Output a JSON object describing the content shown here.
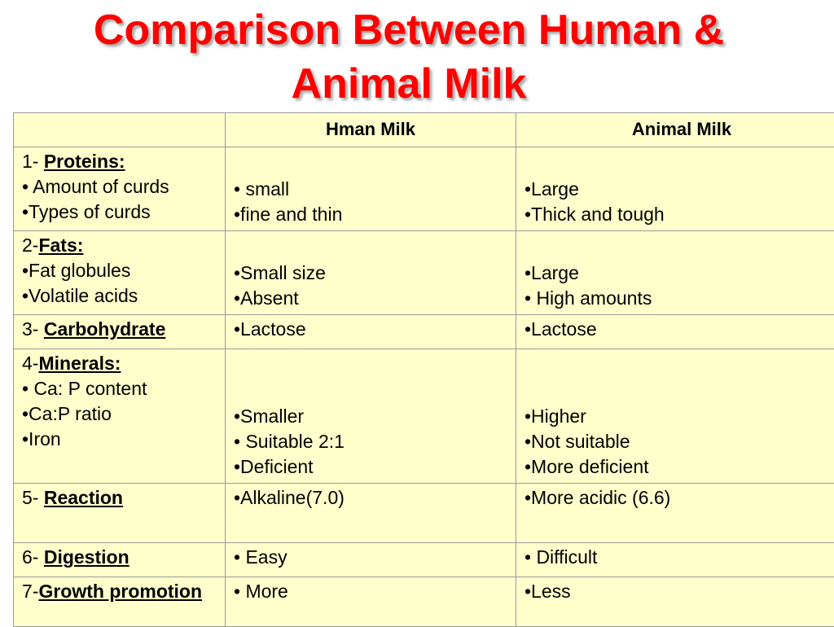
{
  "title": {
    "line1": "Comparison Between Human &",
    "line2": "Animal Milk"
  },
  "table": {
    "headers": [
      "",
      "Hman Milk",
      "Animal Milk"
    ],
    "rows": [
      {
        "prefix": "1- ",
        "category": "Proteins:",
        "items": [
          "• Amount of curds",
          "•Types of curds"
        ],
        "human": [
          "• small",
          "•fine and thin"
        ],
        "animal": [
          "•Large",
          "•Thick and tough"
        ]
      },
      {
        "prefix": "2-",
        "category": "Fats:",
        "items": [
          "•Fat globules",
          "•Volatile acids"
        ],
        "human": [
          "•Small size",
          "•Absent"
        ],
        "animal": [
          "•Large",
          "• High amounts"
        ]
      },
      {
        "prefix": "3- ",
        "category": "Carbohydrate",
        "items": [],
        "human": [
          "•Lactose"
        ],
        "animal": [
          "•Lactose"
        ]
      },
      {
        "prefix": "4-",
        "category": "Minerals:",
        "items": [
          "• Ca: P content",
          "•Ca:P ratio",
          "•Iron"
        ],
        "human": [
          "•Smaller",
          "• Suitable 2:1",
          "•Deficient"
        ],
        "animal": [
          "•Higher",
          "•Not suitable",
          "•More deficient"
        ]
      },
      {
        "prefix": "5- ",
        "category": "Reaction",
        "items": [],
        "human": [
          "•Alkaline(7.0)"
        ],
        "animal": [
          "•More acidic (6.6)"
        ]
      },
      {
        "prefix": "6- ",
        "category": "Digestion",
        "items": [],
        "human": [
          "• Easy"
        ],
        "animal": [
          "• Difficult"
        ]
      },
      {
        "prefix": "7-",
        "category": "Growth promotion",
        "items": [],
        "human": [
          "• More"
        ],
        "animal": [
          "•Less"
        ]
      }
    ]
  },
  "colors": {
    "title": "#ff0000",
    "table_background": "#ffffcc",
    "border": "#9a9a9a"
  }
}
